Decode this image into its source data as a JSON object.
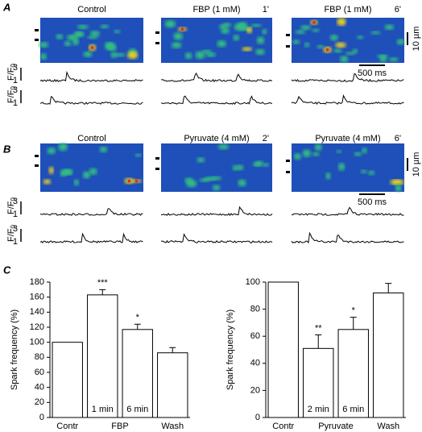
{
  "panel_a": {
    "label": "A",
    "images": [
      {
        "title": "Control"
      },
      {
        "title": "FBP (1 mM)",
        "time": "1'"
      },
      {
        "title": "FBP (1 mM)",
        "time": "6'"
      }
    ],
    "scale_y": "10 µm",
    "scale_x": "500 ms"
  },
  "panel_b": {
    "label": "B",
    "images": [
      {
        "title": "Control"
      },
      {
        "title": "Pyruvate (4 mM)",
        "time": "2'"
      },
      {
        "title": "Pyruvate (4 mM)",
        "time": "6'"
      }
    ],
    "scale_y": "10 µm",
    "scale_x": "500 ms"
  },
  "trace_axis": {
    "label": "F/F",
    "sub": "0",
    "ticks": [
      "3",
      "1"
    ]
  },
  "panel_c": {
    "label": "C"
  },
  "chart_data": [
    {
      "type": "bar",
      "ylabel": "Spark frequency (%)",
      "categories": [
        "Contr",
        "FBP",
        null,
        "Wash"
      ],
      "values": [
        100,
        163,
        117,
        86
      ],
      "errors": [
        null,
        7,
        7,
        7
      ],
      "bar_labels": [
        null,
        "1 min",
        "6 min",
        null
      ],
      "significance": [
        null,
        "***",
        "*",
        null
      ],
      "color": "#ffffff",
      "ylim": [
        0,
        180
      ],
      "yticks": [
        0,
        20,
        40,
        60,
        80,
        100,
        120,
        140,
        160,
        180
      ]
    },
    {
      "type": "bar",
      "ylabel": "Spark frequency (%)",
      "categories": [
        "Contr",
        "Pyruvate",
        null,
        "Wash"
      ],
      "values": [
        100,
        51,
        65,
        92
      ],
      "errors": [
        null,
        10,
        9,
        7
      ],
      "bar_labels": [
        null,
        "2 min",
        "6 min",
        null
      ],
      "significance": [
        null,
        "**",
        "*",
        null
      ],
      "color": "#ffffff",
      "ylim": [
        0,
        100
      ],
      "yticks": [
        0,
        20,
        40,
        60,
        80,
        100
      ]
    }
  ]
}
